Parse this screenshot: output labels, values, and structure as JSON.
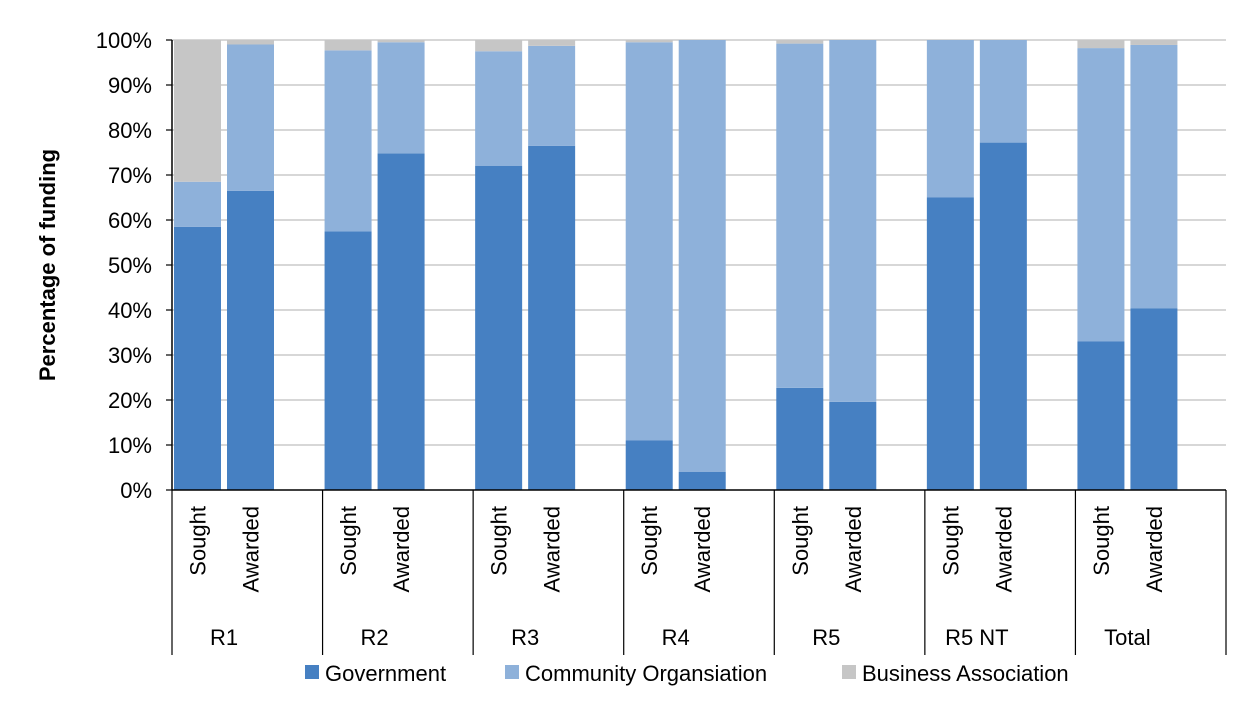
{
  "chart_data": {
    "type": "bar",
    "stacked": true,
    "ylabel": "Percentage of funding",
    "ylim": [
      0,
      100
    ],
    "y_ticks": [
      "0%",
      "10%",
      "20%",
      "30%",
      "40%",
      "50%",
      "60%",
      "70%",
      "80%",
      "90%",
      "100%"
    ],
    "grid": true,
    "legend_position": "bottom",
    "groups": [
      "R1",
      "R2",
      "R3",
      "R4",
      "R5",
      "R5 NT",
      "Total"
    ],
    "bar_labels": [
      "Sought",
      "Awarded"
    ],
    "categories": [
      "R1 Sought",
      "R1 Awarded",
      "R2 Sought",
      "R2 Awarded",
      "R3 Sought",
      "R3 Awarded",
      "R4 Sought",
      "R4 Awarded",
      "R5 Sought",
      "R5 Awarded",
      "R5 NT Sought",
      "R5 NT Awarded",
      "Total Sought",
      "Total Awarded"
    ],
    "series": [
      {
        "name": "Government",
        "color": "#4680c2",
        "values": [
          58.5,
          66.5,
          57.5,
          74.8,
          72,
          76.5,
          11,
          4,
          22.7,
          19.6,
          65,
          77.2,
          33,
          40.4
        ]
      },
      {
        "name": "Community Organsiation",
        "color": "#8eb1da",
        "values": [
          10,
          32.5,
          40.2,
          24.7,
          25.5,
          22.2,
          88.5,
          96,
          76.5,
          80.4,
          35,
          22.8,
          65.2,
          58.5
        ]
      },
      {
        "name": "Business Association",
        "color": "#c6c6c6",
        "values": [
          31.5,
          1,
          2.3,
          0.5,
          2.5,
          1.3,
          0.5,
          0,
          0.8,
          0,
          0,
          0,
          1.8,
          1.1
        ]
      }
    ]
  }
}
